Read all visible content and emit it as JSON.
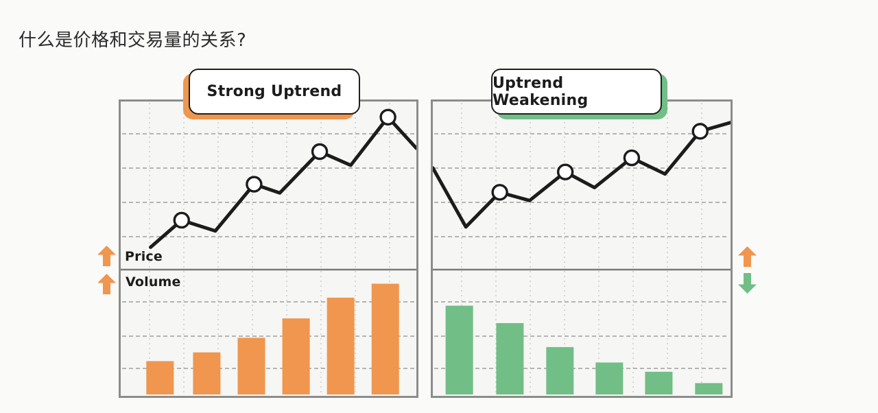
{
  "page": {
    "title": "什么是价格和交易量的关系?"
  },
  "labels": {
    "price": "Price",
    "volume": "Volume"
  },
  "colors": {
    "orange": "#F0964E",
    "green": "#72BE87",
    "line": "#1C1C1C",
    "marker_fill": "#FFFFFF",
    "grid_vertical": "#CDCDCA",
    "grid_horizontal": "#ABABA8",
    "divider": "#7A7A7A",
    "panel_border": "#8C8C8C"
  },
  "chart_data": [
    {
      "type": "line+bar",
      "id": "strong-uptrend",
      "title": "Strong Uptrend",
      "accent": "#F0964E",
      "price_trend": "up",
      "volume_trend": "up",
      "price_line": {
        "x_pct": [
          10.1,
          20.6,
          32.0,
          45.1,
          53.8,
          67.3,
          77.8,
          90.4,
          100
        ],
        "value_pct": [
          13.3,
          29.4,
          23.0,
          50.8,
          45.6,
          70.2,
          62.1,
          90.7,
          72.2
        ],
        "marker_indices": [
          1,
          3,
          5,
          7
        ]
      },
      "volume_bars": {
        "x_pct": [
          13.3,
          29.1,
          44.2,
          59.3,
          74.4,
          89.5
        ],
        "value_pct": [
          27.0,
          34.1,
          45.9,
          61.6,
          78.4,
          89.7
        ]
      }
    },
    {
      "type": "line+bar",
      "id": "uptrend-weakening",
      "title": "Uptrend Weakening",
      "accent": "#72BE87",
      "price_trend": "up",
      "volume_trend": "down",
      "price_line": {
        "x_pct": [
          0,
          11.1,
          22.5,
          32.5,
          44.5,
          54.3,
          66.8,
          78.0,
          89.8,
          100
        ],
        "value_pct": [
          60.5,
          25.4,
          46.0,
          41.1,
          58.1,
          48.8,
          66.5,
          56.9,
          82.3,
          87.5
        ],
        "marker_indices": [
          2,
          4,
          6,
          8
        ]
      },
      "volume_bars": {
        "x_pct": [
          8.9,
          25.9,
          42.7,
          59.3,
          75.9,
          92.7
        ],
        "value_pct": [
          71.9,
          57.8,
          38.4,
          25.9,
          18.4,
          9.2
        ]
      }
    }
  ],
  "annotations": [
    {
      "slot": "arrow-price-left",
      "icon": "arrow-up-icon",
      "direction": "up",
      "color": "#F0964E"
    },
    {
      "slot": "arrow-volume-left",
      "icon": "arrow-up-icon",
      "direction": "up",
      "color": "#F0964E"
    },
    {
      "slot": "arrow-price-right",
      "icon": "arrow-up-icon",
      "direction": "up",
      "color": "#F0964E"
    },
    {
      "slot": "arrow-volume-right",
      "icon": "arrow-down-icon",
      "direction": "down",
      "color": "#72BE87"
    }
  ]
}
